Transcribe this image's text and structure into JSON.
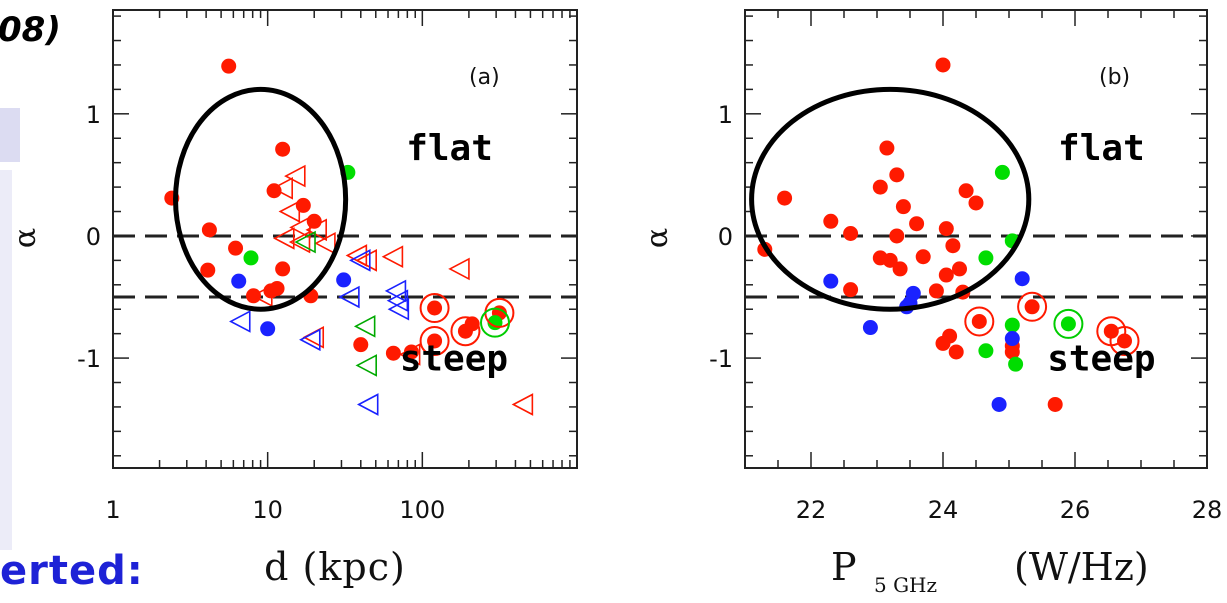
{
  "slide_fragments": {
    "top_left": "08)",
    "bottom_left": "erted:"
  },
  "chart_data": [
    {
      "type": "scatter",
      "panel_label": "(a)",
      "xlabel": "d (kpc)",
      "ylabel": "α",
      "x_scale": "log",
      "xlim": [
        1,
        1000
      ],
      "ylim": [
        -1.9,
        1.85
      ],
      "xticks": [
        {
          "v": 1,
          "label": "1"
        },
        {
          "v": 10,
          "label": "10"
        },
        {
          "v": 100,
          "label": "100"
        }
      ],
      "yticks": [
        {
          "v": 1,
          "label": "1"
        },
        {
          "v": 0,
          "label": "0"
        },
        {
          "v": -1,
          "label": "-1"
        }
      ],
      "dashed_lines": [
        0,
        -0.5
      ],
      "annotations": [
        {
          "text": "flat",
          "x": 150,
          "y": 0.62
        },
        {
          "text": "steep",
          "x": 160,
          "y": -1.1
        }
      ],
      "circle": {
        "cx": 9,
        "cy": 0.3,
        "rx_dec": 0.55,
        "ry": 0.9
      },
      "series": [
        {
          "color": "#ff1a00",
          "marker": "dot",
          "points": [
            [
              5.6,
              1.39
            ],
            [
              2.4,
              0.31
            ],
            [
              12.5,
              0.71
            ],
            [
              11,
              0.37
            ],
            [
              17,
              0.25
            ],
            [
              20,
              0.12
            ],
            [
              4.2,
              0.05
            ],
            [
              6.2,
              -0.1
            ],
            [
              4.1,
              -0.28
            ],
            [
              12.5,
              -0.27
            ],
            [
              8.1,
              -0.49
            ],
            [
              10.5,
              -0.45
            ],
            [
              11.5,
              -0.43
            ],
            [
              19,
              -0.49
            ],
            [
              40,
              -0.89
            ],
            [
              65,
              -0.96
            ],
            [
              85,
              -0.95
            ],
            [
              120,
              -0.59
            ],
            [
              120,
              -0.86
            ],
            [
              190,
              -0.78
            ],
            [
              210,
              -0.72
            ],
            [
              315,
              -0.63
            ]
          ]
        },
        {
          "color": "#00dd00",
          "marker": "dot",
          "points": [
            [
              33,
              0.52
            ],
            [
              7.8,
              -0.18
            ],
            [
              295,
              -0.71
            ]
          ]
        },
        {
          "color": "#1a22ff",
          "marker": "dot",
          "points": [
            [
              6.5,
              -0.37
            ],
            [
              10,
              -0.76
            ],
            [
              31,
              -0.36
            ]
          ]
        },
        {
          "color": "#ff1a00",
          "marker": "open-triangle-left",
          "points": [
            [
              12.6,
              0.39
            ],
            [
              15.2,
              0.49
            ],
            [
              14,
              0.2
            ],
            [
              16.4,
              0.07
            ],
            [
              12.9,
              -0.02
            ],
            [
              16.3,
              -0.05
            ],
            [
              20.9,
              0.05
            ],
            [
              23.8,
              -0.06
            ],
            [
              38,
              -0.16
            ],
            [
              44,
              -0.2
            ],
            [
              65,
              -0.17
            ],
            [
              9.3,
              -0.49
            ],
            [
              20,
              -0.83
            ],
            [
              84,
              -0.97
            ],
            [
              175,
              -0.27
            ],
            [
              450,
              -1.38
            ]
          ]
        },
        {
          "color": "#00aa00",
          "marker": "open-triangle-left",
          "points": [
            [
              17.7,
              -0.05
            ],
            [
              43,
              -0.74
            ],
            [
              44,
              -1.06
            ]
          ]
        },
        {
          "color": "#1a22ff",
          "marker": "open-triangle-left",
          "points": [
            [
              6.7,
              -0.7
            ],
            [
              19,
              -0.85
            ],
            [
              34,
              -0.5
            ],
            [
              40,
              -0.2
            ],
            [
              68,
              -0.45
            ],
            [
              70,
              -0.53
            ],
            [
              71,
              -0.6
            ],
            [
              45,
              -1.38
            ]
          ]
        },
        {
          "color": "#ff1a00",
          "marker": "ring",
          "points": [
            [
              120,
              -0.59
            ],
            [
              120,
              -0.86
            ],
            [
              190,
              -0.78
            ],
            [
              315,
              -0.63
            ]
          ]
        },
        {
          "color": "#00cc00",
          "marker": "ring",
          "points": [
            [
              295,
              -0.71
            ]
          ]
        }
      ]
    },
    {
      "type": "scatter",
      "panel_label": "(b)",
      "xlabel": "P",
      "xlabel_sub": "5 GHz",
      "xlabel_unit": "(W/Hz)",
      "ylabel": "α",
      "xlim": [
        21,
        28
      ],
      "ylim": [
        -1.9,
        1.85
      ],
      "xticks": [
        {
          "v": 22,
          "label": "22"
        },
        {
          "v": 24,
          "label": "24"
        },
        {
          "v": 26,
          "label": "26"
        },
        {
          "v": 28,
          "label": "28"
        }
      ],
      "yticks": [
        {
          "v": 1,
          "label": "1"
        },
        {
          "v": 0,
          "label": "0"
        },
        {
          "v": -1,
          "label": "-1"
        }
      ],
      "dashed_lines": [
        0,
        -0.5
      ],
      "annotations": [
        {
          "text": "flat",
          "x": 26.4,
          "y": 0.62
        },
        {
          "text": "steep",
          "x": 26.4,
          "y": -1.1
        }
      ],
      "circle": {
        "cx": 23.2,
        "cy": 0.3,
        "rx": 2.1,
        "ry": 0.9
      },
      "series": [
        {
          "color": "#ff1a00",
          "marker": "dot",
          "points": [
            [
              24,
              1.4
            ],
            [
              21.6,
              0.31
            ],
            [
              23.15,
              0.72
            ],
            [
              23.3,
              0.5
            ],
            [
              23.05,
              0.4
            ],
            [
              23.4,
              0.24
            ],
            [
              22.3,
              0.12
            ],
            [
              22.6,
              0.02
            ],
            [
              23.6,
              0.1
            ],
            [
              24.05,
              0.06
            ],
            [
              24.35,
              0.37
            ],
            [
              24.5,
              0.27
            ],
            [
              23.3,
              0.0
            ],
            [
              21.3,
              -0.11
            ],
            [
              23.05,
              -0.18
            ],
            [
              23.2,
              -0.2
            ],
            [
              23.35,
              -0.27
            ],
            [
              23.7,
              -0.17
            ],
            [
              24.15,
              -0.08
            ],
            [
              24.25,
              -0.27
            ],
            [
              24.05,
              -0.32
            ],
            [
              24.3,
              -0.46
            ],
            [
              23.9,
              -0.45
            ],
            [
              22.6,
              -0.44
            ],
            [
              24.1,
              -0.82
            ],
            [
              24.0,
              -0.88
            ],
            [
              24.2,
              -0.95
            ],
            [
              24.55,
              -0.7
            ],
            [
              25.35,
              -0.58
            ],
            [
              25.05,
              -0.9
            ],
            [
              25.05,
              -0.95
            ],
            [
              26.55,
              -0.78
            ],
            [
              26.75,
              -0.86
            ],
            [
              25.7,
              -1.38
            ]
          ]
        },
        {
          "color": "#00dd00",
          "marker": "dot",
          "points": [
            [
              24.9,
              0.52
            ],
            [
              25.05,
              -0.04
            ],
            [
              24.65,
              -0.18
            ],
            [
              25.05,
              -0.73
            ],
            [
              24.65,
              -0.94
            ],
            [
              25.1,
              -1.05
            ],
            [
              25.9,
              -0.72
            ]
          ]
        },
        {
          "color": "#1a22ff",
          "marker": "dot",
          "points": [
            [
              22.3,
              -0.37
            ],
            [
              22.9,
              -0.75
            ],
            [
              23.55,
              -0.47
            ],
            [
              23.5,
              -0.55
            ],
            [
              23.45,
              -0.58
            ],
            [
              25.2,
              -0.35
            ],
            [
              25.05,
              -0.84
            ],
            [
              24.85,
              -1.38
            ]
          ]
        },
        {
          "color": "#ff1a00",
          "marker": "ring",
          "points": [
            [
              24.55,
              -0.7
            ],
            [
              25.35,
              -0.58
            ],
            [
              26.55,
              -0.78
            ],
            [
              26.75,
              -0.86
            ]
          ]
        },
        {
          "color": "#00cc00",
          "marker": "ring",
          "points": [
            [
              25.9,
              -0.72
            ]
          ]
        }
      ]
    }
  ]
}
